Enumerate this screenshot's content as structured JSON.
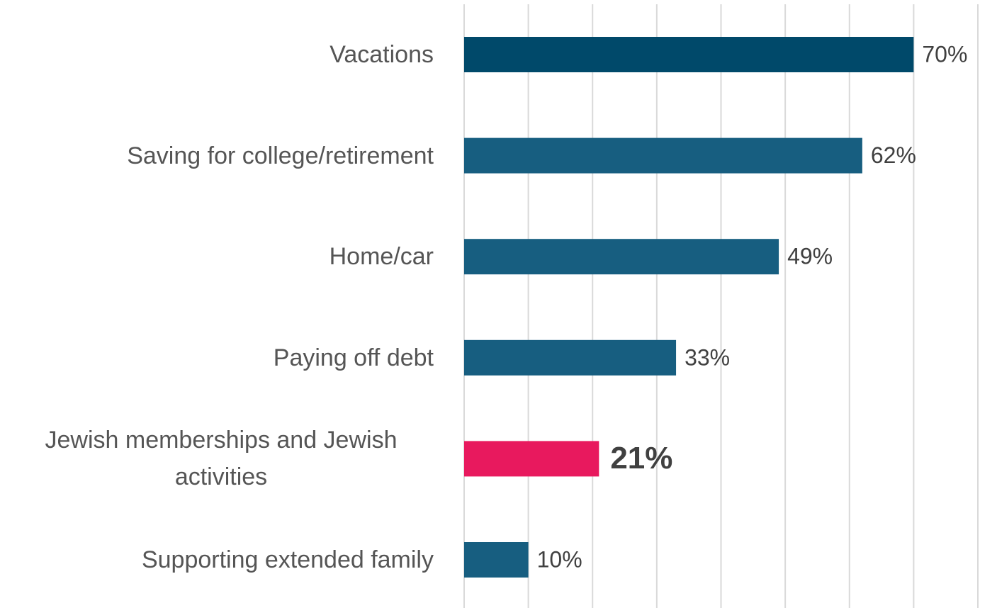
{
  "chart_data": {
    "type": "hbar",
    "categories": [
      "Vacations",
      "Saving for college/retirement",
      "Home/car",
      "Paying off debt",
      "Jewish memberships and Jewish activities",
      "Supporting extended family"
    ],
    "values": [
      70,
      62,
      49,
      33,
      21,
      10
    ],
    "value_labels": [
      "70%",
      "62%",
      "49%",
      "33%",
      "21%",
      "10%"
    ],
    "colors": [
      "#00496a",
      "#175e80",
      "#175e80",
      "#175e80",
      "#e8195e",
      "#175e80"
    ],
    "highlight_color": "#e8195e",
    "xlim": [
      0,
      80
    ],
    "xticks": [
      0,
      10,
      20,
      30,
      40,
      50,
      60,
      70,
      80
    ],
    "grid": true
  }
}
